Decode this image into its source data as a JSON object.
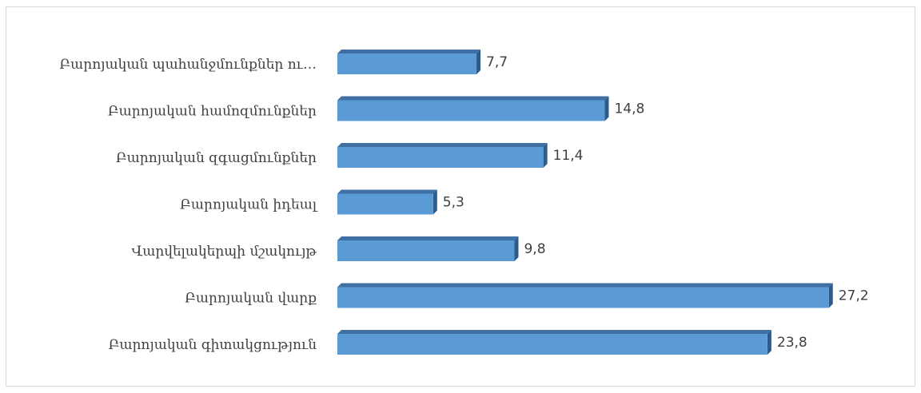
{
  "chart_data": {
    "type": "bar",
    "orientation": "horizontal",
    "style": "3d",
    "title": "",
    "xlabel": "",
    "ylabel": "",
    "xlim": [
      0,
      28.5
    ],
    "grid": false,
    "legend": "none",
    "categories": [
      "Բարոյական պահանջմունքներ ու…",
      "Բարոյական համոզմունքներ",
      "Բարոյական զգացմունքներ",
      "Բարոյական իդեալ",
      "Վարվելակերպի մշակույթ",
      "Բարոյական վարք",
      "Բարոյական գիտակցություն"
    ],
    "values": [
      7.7,
      14.8,
      11.4,
      5.3,
      9.8,
      27.2,
      23.8
    ],
    "value_labels": [
      "7,7",
      "14,8",
      "11,4",
      "5,3",
      "9,8",
      "27,2",
      "23,8"
    ],
    "colors": {
      "bar_front": "#5b9bd5",
      "bar_top": "#3f6fa3",
      "bar_side": "#2e5b8a",
      "text": "#404040",
      "frame": "#d9d9d9"
    }
  }
}
